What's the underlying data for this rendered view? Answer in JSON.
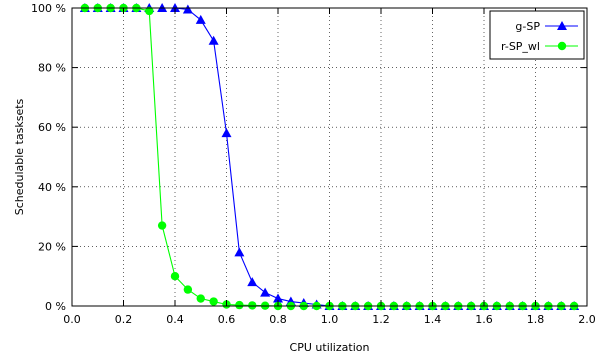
{
  "chart_data": {
    "type": "line",
    "title": "",
    "xlabel": "CPU utilization",
    "ylabel": "Schedulable tasksets",
    "xlim": [
      0.0,
      2.0
    ],
    "ylim": [
      0,
      100
    ],
    "x_ticks": [
      "0.0",
      "0.2",
      "0.4",
      "0.6",
      "0.8",
      "1.0",
      "1.2",
      "1.4",
      "1.6",
      "1.8",
      "2.0"
    ],
    "y_ticks": [
      "0 %",
      "20 %",
      "40 %",
      "60 %",
      "80 %",
      "100 %"
    ],
    "grid": true,
    "legend_position": "top-right",
    "x": [
      0.05,
      0.1,
      0.15,
      0.2,
      0.25,
      0.3,
      0.35,
      0.4,
      0.45,
      0.5,
      0.55,
      0.6,
      0.65,
      0.7,
      0.75,
      0.8,
      0.85,
      0.9,
      0.95,
      1.0,
      1.05,
      1.1,
      1.15,
      1.2,
      1.25,
      1.3,
      1.35,
      1.4,
      1.45,
      1.5,
      1.55,
      1.6,
      1.65,
      1.7,
      1.75,
      1.8,
      1.85,
      1.9,
      1.95
    ],
    "series": [
      {
        "name": "g-SP",
        "color": "#0000ff",
        "marker": "triangle",
        "values": [
          100,
          100,
          100,
          100,
          100,
          100,
          100,
          100,
          99.5,
          96,
          89,
          58,
          18,
          8,
          4.5,
          2.5,
          1.5,
          1,
          0.5,
          0,
          0,
          0,
          0,
          0,
          0,
          0,
          0,
          0,
          0,
          0,
          0,
          0,
          0,
          0,
          0,
          0,
          0,
          0,
          0
        ]
      },
      {
        "name": "r-SP_wl",
        "color": "#00ff00",
        "marker": "circle",
        "values": [
          100,
          100,
          100,
          100,
          100,
          99,
          27,
          10,
          5.5,
          2.5,
          1.5,
          0.5,
          0.3,
          0.2,
          0.1,
          0,
          0,
          0,
          0,
          0,
          0,
          0,
          0,
          0,
          0,
          0,
          0,
          0,
          0,
          0,
          0,
          0,
          0,
          0,
          0,
          0,
          0,
          0,
          0
        ]
      }
    ]
  }
}
